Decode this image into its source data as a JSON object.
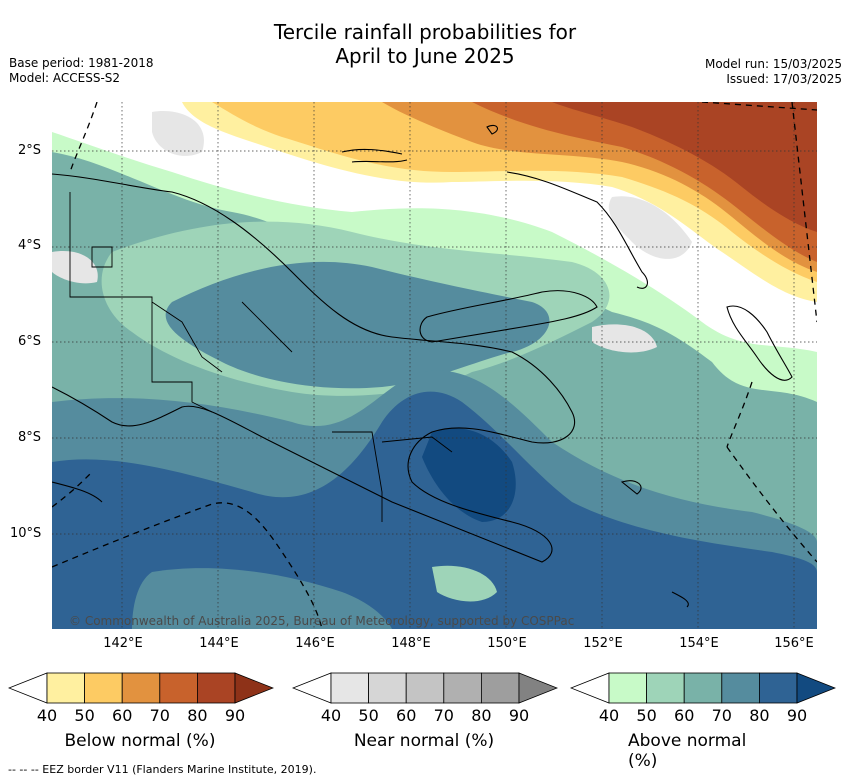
{
  "title_line1": "Tercile rainfall probabilities for",
  "title_line2": "April to June 2025",
  "base_period": "Base period: 1981-2018",
  "model": "Model: ACCESS-S2",
  "model_run": "Model run: 15/03/2025",
  "issued": "Issued: 17/03/2025",
  "lat_labels": [
    "2°S",
    "4°S",
    "6°S",
    "8°S",
    "10°S"
  ],
  "lon_labels": [
    "142°E",
    "144°E",
    "146°E",
    "148°E",
    "150°E",
    "152°E",
    "154°E",
    "156°E"
  ],
  "copyright": "© Commonwealth of Australia 2025, Bureau of Meteorology, supported by COSPPac",
  "colorbars": [
    {
      "title": "Below normal (%)",
      "ticks": [
        "40",
        "50",
        "60",
        "70",
        "80",
        "90"
      ],
      "colors": [
        "#ffffff",
        "#fff0a0",
        "#fdcb63",
        "#e2923f",
        "#c8622c",
        "#aa4424",
        "#8e3218"
      ]
    },
    {
      "title": "Near normal (%)",
      "ticks": [
        "40",
        "50",
        "60",
        "70",
        "80",
        "90"
      ],
      "colors": [
        "#ffffff",
        "#e6e6e6",
        "#d6d6d6",
        "#c4c4c4",
        "#b0b0b0",
        "#9e9e9e",
        "#828282"
      ]
    },
    {
      "title": "Above normal (%)",
      "ticks": [
        "40",
        "50",
        "60",
        "70",
        "80",
        "90"
      ],
      "colors": [
        "#ffffff",
        "#c8fac8",
        "#9ed4b8",
        "#79b2a8",
        "#558c9e",
        "#2f6394",
        "#124a80"
      ]
    }
  ],
  "footer": "--  --  -- EEZ border V11 (Flanders Marine Institute, 2019)."
}
